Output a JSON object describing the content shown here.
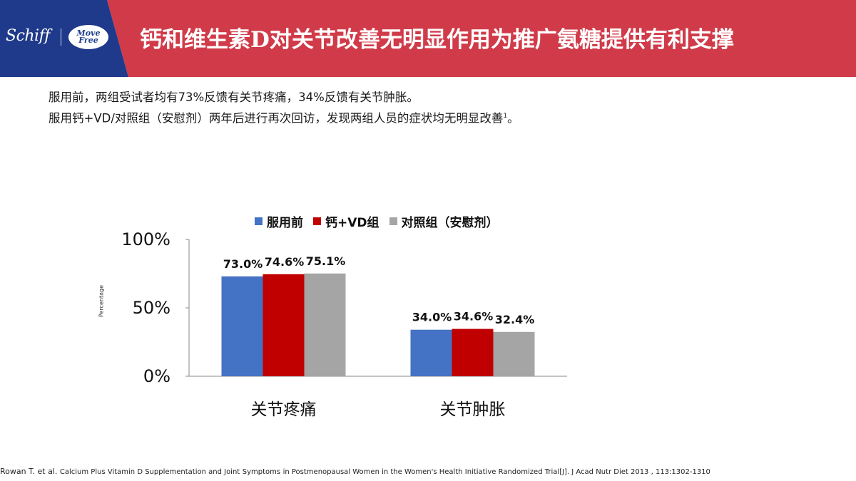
{
  "header": {
    "brand_left": "Schiff",
    "brand_right": "Move Free",
    "title": "钙和维生素D对关节改善无明显作用为推广氨糖提供有利支撑",
    "colors": {
      "navy": "#1f3a8a",
      "red": "#d13b49"
    }
  },
  "intro": {
    "line1": "服用前，两组受试者均有73%反馈有关节疼痛，34%反馈有关节肿胀。",
    "line2": "服用钙+VD/对照组（安慰剂）两年后进行再次回访，发现两组人员的症状均无明显改善",
    "line2_sup": "1",
    "line2_end": "。"
  },
  "chart_data": {
    "type": "bar",
    "categories": [
      "关节疼痛",
      "关节肿胀"
    ],
    "series": [
      {
        "name": "服用前",
        "values": [
          73.0,
          34.0
        ],
        "labels": [
          "73.0%",
          "34.0%"
        ],
        "color": "#4472c4"
      },
      {
        "name": "钙+VD组",
        "values": [
          74.6,
          34.6
        ],
        "labels": [
          "74.6%",
          "34.6%"
        ],
        "color": "#c00000"
      },
      {
        "name": "对照组（安慰剂）",
        "values": [
          75.1,
          32.4
        ],
        "labels": [
          "75.1%",
          "32.4%"
        ],
        "color": "#a5a5a5"
      }
    ],
    "ylabel": "Percentage",
    "ylim": [
      0,
      100
    ],
    "yticks": [
      0,
      50,
      100
    ],
    "ytick_labels": [
      "0%",
      "50%",
      "100%"
    ],
    "legend_position": "top",
    "grid": false
  },
  "footer": {
    "author": "Rowan T. et al.",
    "part1": "Calcium Plus Vitamin D Supplementation and Joint",
    "part2": "Symptoms",
    "part3": "in Postmenopausal Women in the Women's Health Initiative Randomized Trial[J]. J Acad Nutr Diet 2013 , 113:1302-1310"
  }
}
